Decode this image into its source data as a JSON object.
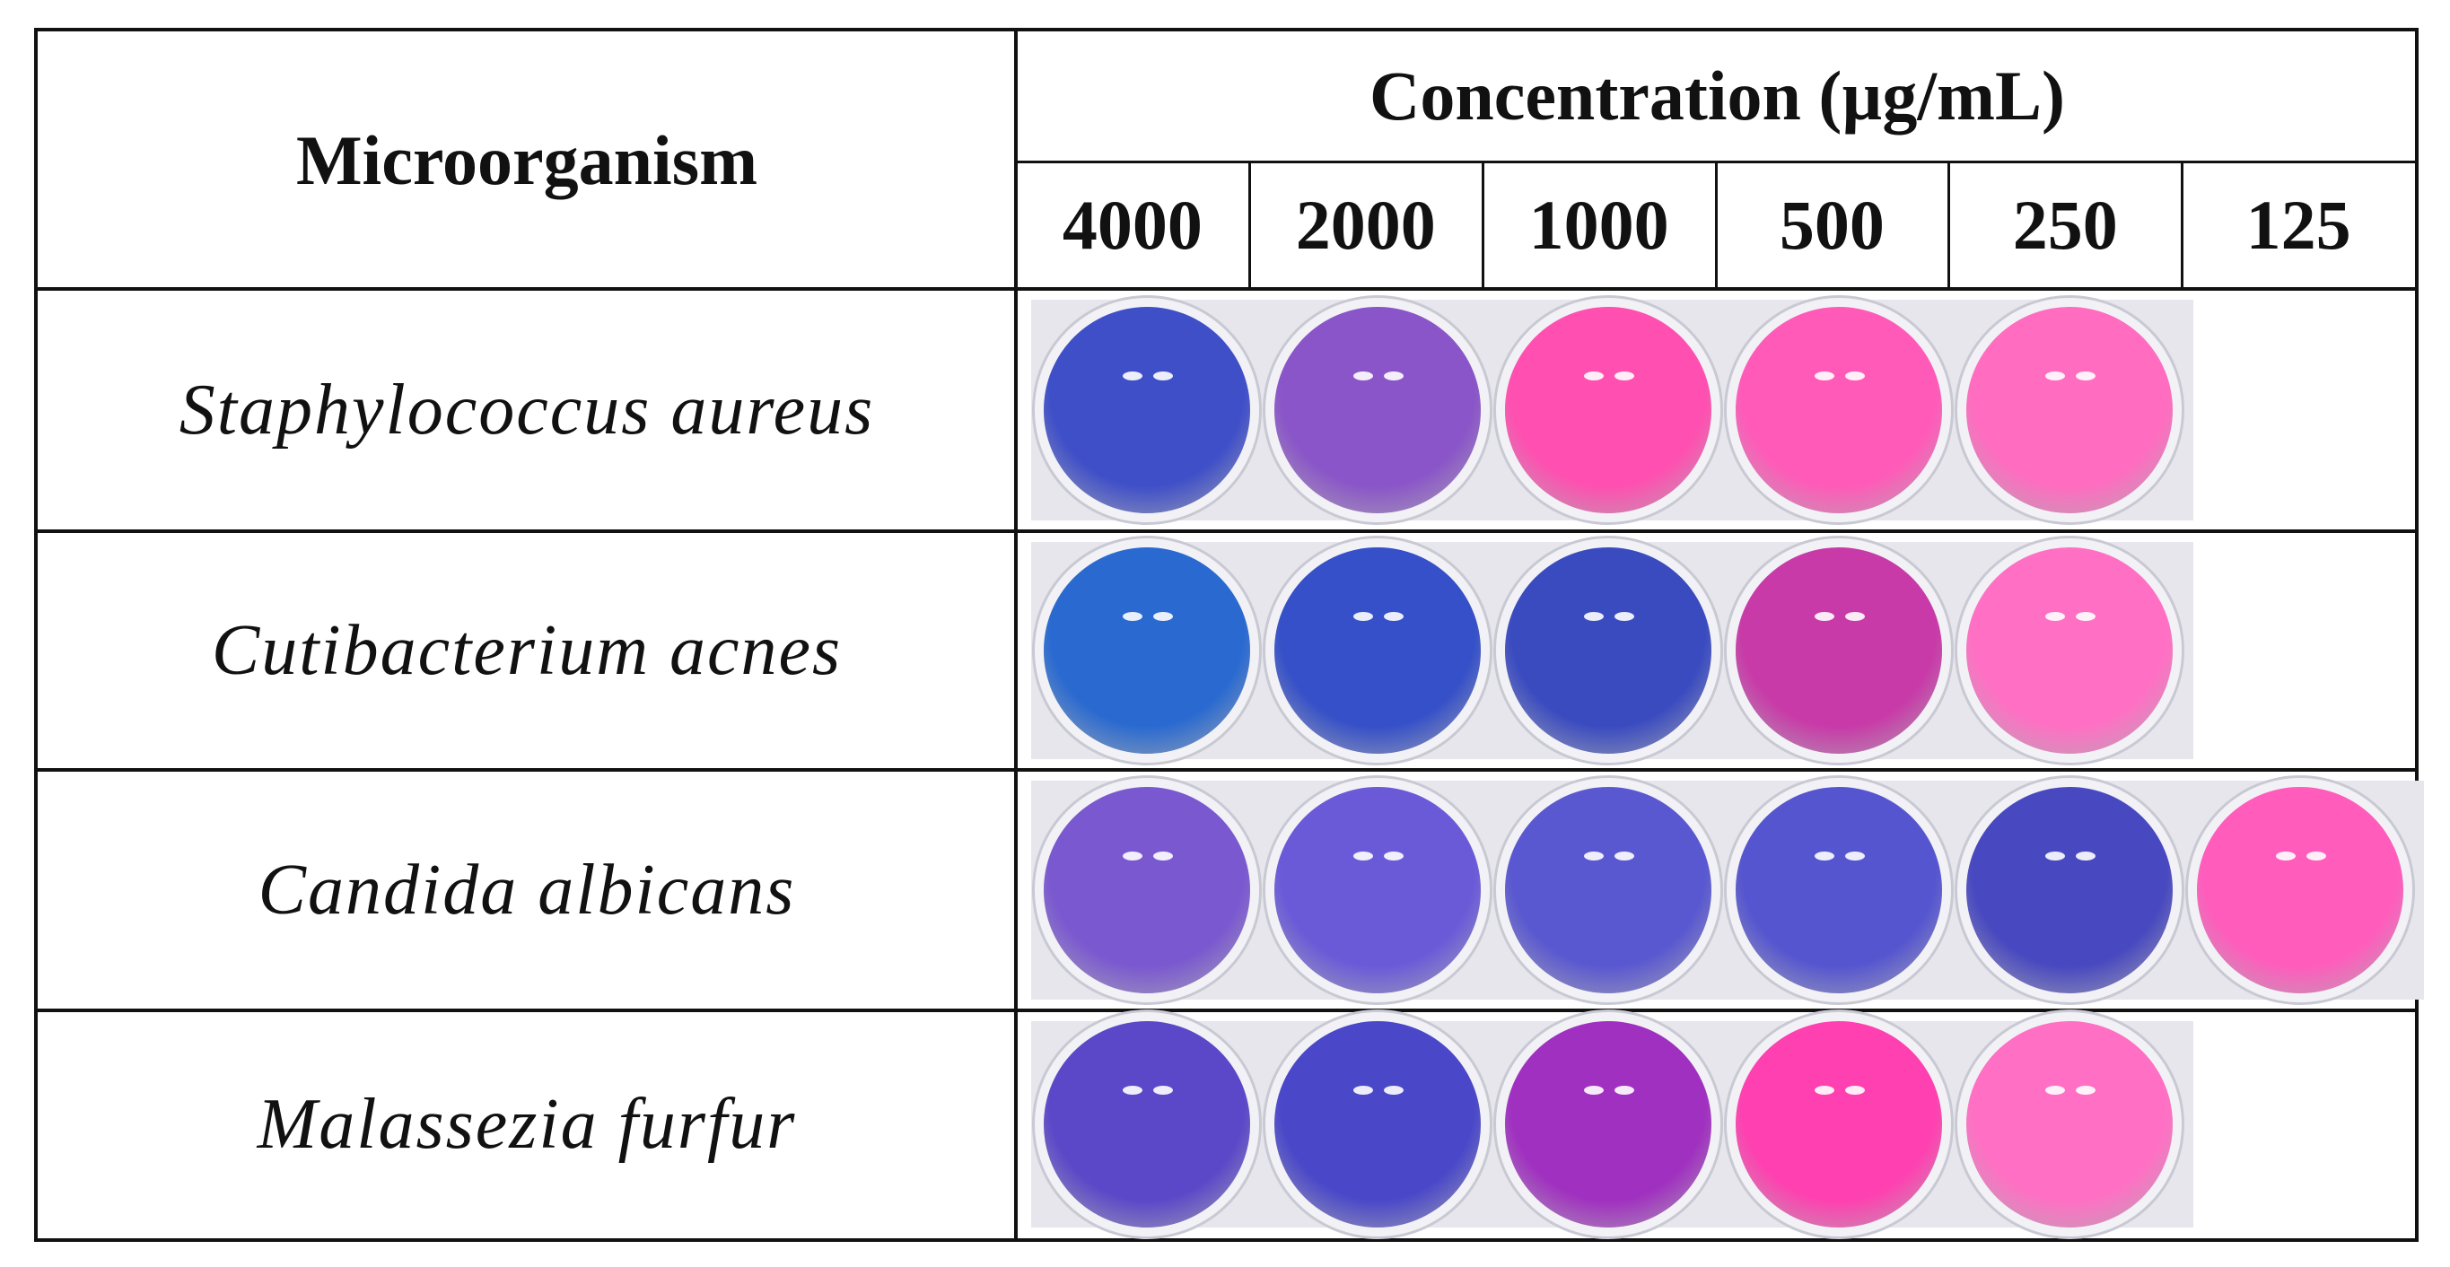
{
  "header": {
    "organism_label": "Microorganism",
    "concentration_label": "Concentration (µg/mL)",
    "concentrations": [
      4000,
      2000,
      1000,
      500,
      250,
      125
    ]
  },
  "rows": [
    "Staphylococcus aureus",
    "Cutibacterium acnes",
    "Candida albicans",
    "Malassezia furfur"
  ]
}
